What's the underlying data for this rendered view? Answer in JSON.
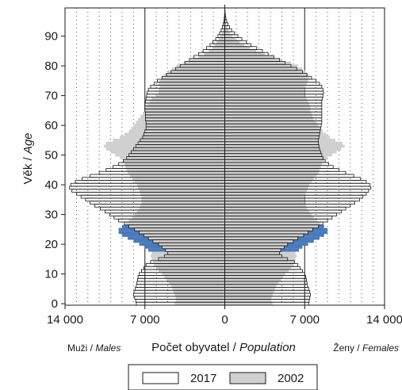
{
  "chart_data": {
    "type": "population-pyramid",
    "ylabel": {
      "main": "Věk / ",
      "italic": "Age"
    },
    "xlabel": {
      "main": "Počet obyvatel / ",
      "italic": "Population"
    },
    "left_caption": {
      "main": "Muži / ",
      "italic": "Males"
    },
    "right_caption": {
      "main": "Ženy / ",
      "italic": "Females"
    },
    "x_ticks": [
      "14 000",
      "7 000",
      "0",
      "7 000",
      "14 000"
    ],
    "x_tick_values": [
      -14000,
      -7000,
      0,
      7000,
      14000
    ],
    "y_ticks": [
      0,
      10,
      20,
      30,
      40,
      50,
      60,
      70,
      80,
      90
    ],
    "xlim": [
      -14000,
      14000
    ],
    "ylim": [
      0,
      100
    ],
    "grid_vertical_dotted": true,
    "legend_placement": "bottom-center",
    "colors": {
      "series_2017": "#ffffff",
      "series_2002": "#d0d0d0",
      "highlight": "#4a7ab9",
      "outline": "#1a1a1a"
    },
    "ages": [
      0,
      1,
      2,
      3,
      4,
      5,
      6,
      7,
      8,
      9,
      10,
      11,
      12,
      13,
      14,
      15,
      16,
      17,
      18,
      19,
      20,
      21,
      22,
      23,
      24,
      25,
      26,
      27,
      28,
      29,
      30,
      31,
      32,
      33,
      34,
      35,
      36,
      37,
      38,
      39,
      40,
      41,
      42,
      43,
      44,
      45,
      46,
      47,
      48,
      49,
      50,
      51,
      52,
      53,
      54,
      55,
      56,
      57,
      58,
      59,
      60,
      61,
      62,
      63,
      64,
      65,
      66,
      67,
      68,
      69,
      70,
      71,
      72,
      73,
      74,
      75,
      76,
      77,
      78,
      79,
      80,
      81,
      82,
      83,
      84,
      85,
      86,
      87,
      88,
      89,
      90,
      91,
      92,
      93,
      94,
      95,
      96,
      97,
      98,
      99,
      100
    ],
    "series": [
      {
        "name": "2017",
        "male": [
          -7750,
          -7800,
          -7900,
          -8000,
          -7950,
          -7850,
          -7750,
          -7700,
          -7650,
          -7600,
          -7500,
          -7300,
          -7100,
          -6900,
          -6500,
          -5800,
          -5300,
          -5000,
          -5200,
          -5500,
          -5800,
          -6300,
          -6700,
          -7100,
          -7500,
          -7900,
          -8400,
          -8800,
          -9300,
          -9700,
          -10100,
          -10500,
          -10900,
          -11400,
          -11800,
          -12200,
          -12600,
          -13000,
          -13400,
          -13600,
          -13500,
          -13100,
          -12500,
          -11800,
          -11000,
          -10400,
          -9800,
          -9300,
          -8900,
          -8600,
          -8400,
          -8200,
          -8000,
          -7800,
          -7600,
          -7400,
          -7200,
          -7100,
          -7000,
          -6900,
          -6900,
          -6900,
          -6950,
          -6950,
          -6950,
          -7000,
          -7000,
          -7000,
          -6950,
          -6900,
          -6850,
          -6800,
          -6700,
          -6500,
          -6200,
          -5900,
          -5500,
          -5100,
          -4700,
          -4300,
          -3900,
          -3500,
          -3100,
          -2700,
          -2300,
          -1900,
          -1600,
          -1300,
          -1050,
          -800,
          -600,
          -450,
          -320,
          -220,
          -140,
          -80,
          -45,
          -25,
          -10,
          -5,
          -2
        ],
        "female": [
          7350,
          7400,
          7450,
          7500,
          7450,
          7350,
          7250,
          7200,
          7150,
          7100,
          7000,
          6800,
          6600,
          6400,
          6100,
          5500,
          5000,
          4800,
          4900,
          5200,
          5500,
          6000,
          6400,
          6900,
          7300,
          7700,
          8200,
          8600,
          9000,
          9400,
          9800,
          10200,
          10600,
          11000,
          11400,
          11800,
          12100,
          12400,
          12600,
          12800,
          12700,
          12400,
          11900,
          11300,
          10600,
          10000,
          9500,
          9100,
          8800,
          8600,
          8500,
          8400,
          8300,
          8250,
          8200,
          8200,
          8250,
          8300,
          8350,
          8400,
          8450,
          8500,
          8500,
          8500,
          8500,
          8500,
          8500,
          8500,
          8500,
          8550,
          8600,
          8650,
          8600,
          8500,
          8300,
          8000,
          7600,
          7200,
          6800,
          6300,
          5800,
          5300,
          4800,
          4300,
          3800,
          3300,
          2800,
          2300,
          1900,
          1500,
          1150,
          850,
          600,
          420,
          280,
          170,
          100,
          55,
          25,
          10,
          3
        ]
      },
      {
        "name": "2002",
        "male": [
          -4400,
          -4300,
          -4300,
          -4400,
          -4500,
          -4600,
          -4700,
          -4900,
          -5100,
          -5300,
          -5500,
          -5800,
          -6000,
          -6200,
          -6300,
          -6400,
          -6500,
          -6400,
          -6700,
          -7000,
          -7500,
          -8000,
          -8500,
          -9000,
          -9300,
          -9300,
          -9000,
          -8700,
          -8400,
          -8100,
          -7900,
          -7700,
          -7500,
          -7400,
          -7300,
          -7300,
          -7300,
          -7400,
          -7500,
          -7600,
          -7700,
          -7900,
          -8100,
          -8300,
          -8500,
          -8600,
          -8700,
          -8800,
          -8900,
          -9200,
          -9600,
          -10000,
          -10400,
          -10600,
          -10400,
          -9800,
          -9200,
          -8800,
          -8400,
          -8200,
          -8000,
          -7800,
          -7600,
          -7400,
          -7200,
          -7000,
          -6900,
          -6800,
          -6600,
          -6400,
          -6000,
          -5800,
          -5800,
          -5700,
          -5800,
          -5700,
          -5500,
          -5300,
          -5000,
          -4600,
          -4200,
          -3600,
          -3000,
          -2300,
          -1800,
          -1400,
          -1100,
          -900,
          -700,
          -520,
          -380,
          -260,
          -170,
          -100,
          -60,
          -30,
          -15,
          -7,
          -3,
          -1,
          0
        ],
        "female": [
          4200,
          4100,
          4100,
          4200,
          4300,
          4400,
          4500,
          4700,
          4900,
          5100,
          5300,
          5600,
          5800,
          6000,
          6100,
          6200,
          6300,
          6200,
          6500,
          6800,
          7300,
          7800,
          8300,
          8700,
          9000,
          9000,
          8700,
          8400,
          8100,
          7800,
          7600,
          7400,
          7200,
          7100,
          7000,
          7000,
          7000,
          7100,
          7200,
          7300,
          7400,
          7600,
          7800,
          8000,
          8200,
          8300,
          8400,
          8500,
          8700,
          9000,
          9400,
          9800,
          10200,
          10500,
          10300,
          9700,
          9200,
          8900,
          8600,
          8400,
          8200,
          8000,
          7800,
          7700,
          7600,
          7500,
          7500,
          7400,
          7300,
          7200,
          7000,
          7000,
          7000,
          7100,
          7200,
          7300,
          7400,
          7300,
          7100,
          6800,
          6400,
          5800,
          5000,
          4300,
          3500,
          2800,
          2200,
          1700,
          1300,
          950,
          680,
          470,
          310,
          190,
          110,
          60,
          30,
          14,
          6,
          2,
          0
        ]
      }
    ]
  },
  "legend": [
    {
      "label": "2017",
      "color": "#ffffff"
    },
    {
      "label": "2002",
      "color": "#d0d0d0"
    }
  ]
}
